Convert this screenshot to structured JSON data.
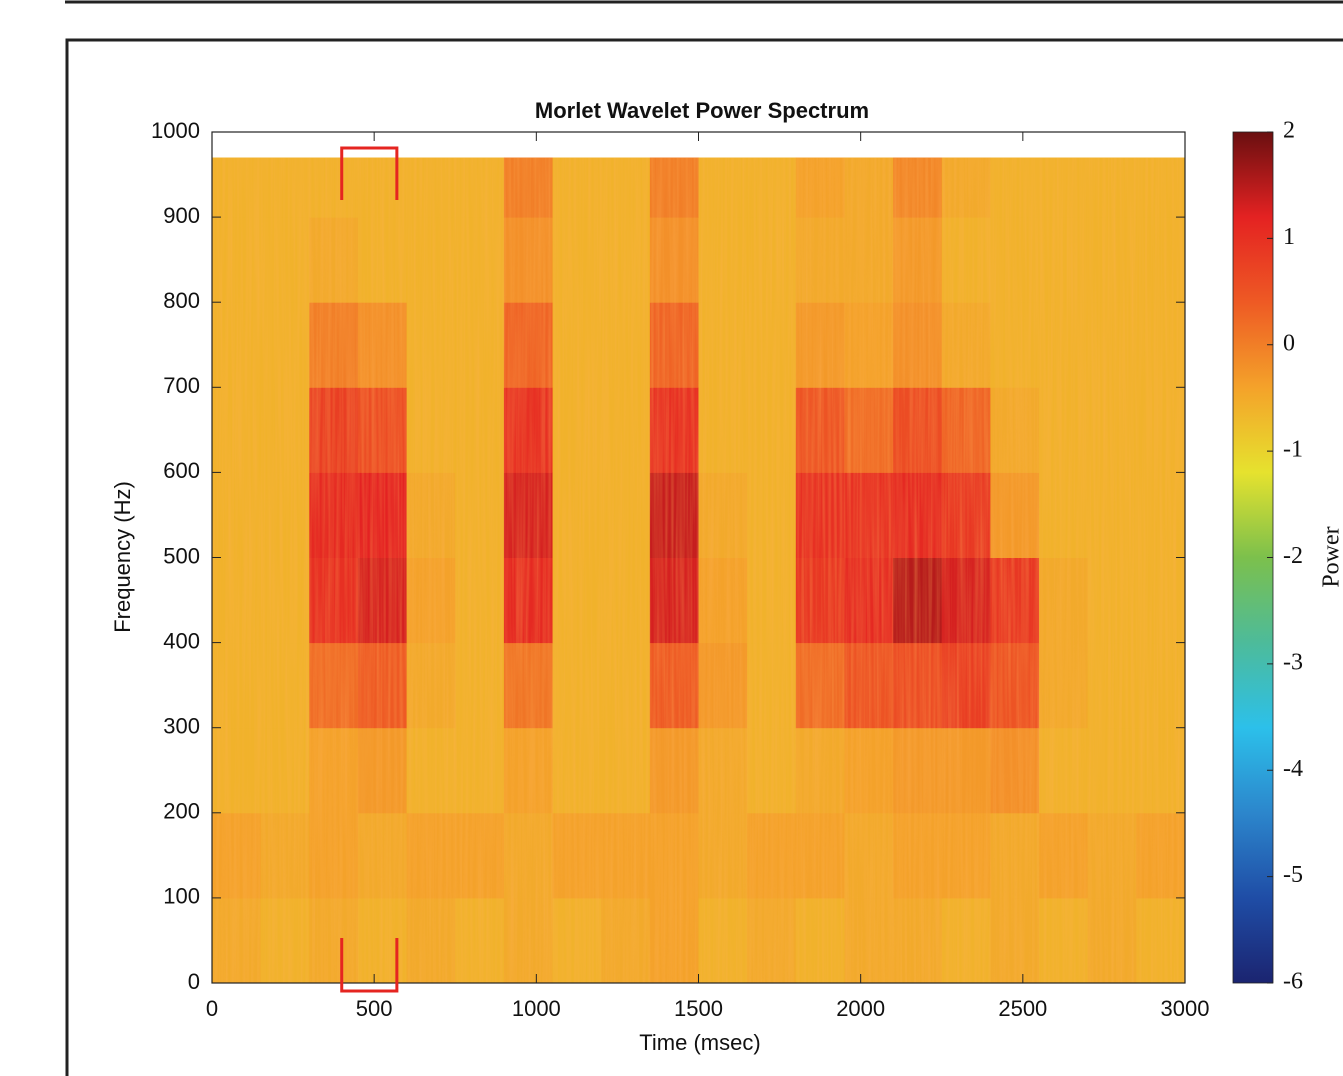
{
  "chart_data": {
    "type": "heatmap",
    "title": "Morlet Wavelet Power Spectrum",
    "x_label": "Time (msec)",
    "y_label": "Frequency (Hz)",
    "colorbar_label": "Power",
    "xlim": [
      0,
      3000
    ],
    "ylim": [
      0,
      1000
    ],
    "xticks": [
      0,
      500,
      1000,
      1500,
      2000,
      2500,
      3000
    ],
    "yticks": [
      0,
      100,
      200,
      300,
      400,
      500,
      600,
      700,
      800,
      900,
      1000
    ],
    "clim": [
      -6,
      2
    ],
    "cticks": [
      -6,
      -5,
      -4,
      -3,
      -2,
      -1,
      0,
      1,
      2
    ],
    "colormap": [
      "#1b2470",
      "#1f4da6",
      "#2c86cc",
      "#2cc0ea",
      "#4dbb9a",
      "#7cc04c",
      "#e6e22e",
      "#f4a22a",
      "#ee5a24",
      "#e42222",
      "#6a0f10"
    ],
    "xbins": [
      0,
      150,
      300,
      450,
      600,
      750,
      900,
      1050,
      1200,
      1350,
      1500,
      1650,
      1800,
      1950,
      2100,
      2250,
      2400,
      2550,
      2700,
      2850,
      3000
    ],
    "ybins": [
      0,
      100,
      200,
      300,
      400,
      500,
      600,
      700,
      800,
      900,
      970
    ],
    "values": [
      [
        -0.5,
        -0.6,
        -0.5,
        -0.6,
        -0.5,
        -0.6,
        -0.5,
        -0.6,
        -0.5,
        -0.4,
        -0.6,
        -0.5,
        -0.6,
        -0.5,
        -0.5,
        -0.6,
        -0.5,
        -0.6,
        -0.5,
        -0.6
      ],
      [
        -0.4,
        -0.5,
        -0.4,
        -0.5,
        -0.4,
        -0.4,
        -0.5,
        -0.4,
        -0.4,
        -0.4,
        -0.5,
        -0.4,
        -0.4,
        -0.5,
        -0.4,
        -0.4,
        -0.5,
        -0.4,
        -0.5,
        -0.4
      ],
      [
        -0.6,
        -0.6,
        -0.4,
        -0.3,
        -0.6,
        -0.6,
        -0.4,
        -0.6,
        -0.6,
        -0.3,
        -0.5,
        -0.6,
        -0.5,
        -0.4,
        -0.3,
        -0.3,
        -0.2,
        -0.6,
        -0.6,
        -0.6
      ],
      [
        -0.6,
        -0.6,
        0.2,
        0.4,
        -0.5,
        -0.6,
        0.1,
        -0.6,
        -0.6,
        0.4,
        -0.3,
        -0.6,
        0.2,
        0.5,
        0.6,
        0.8,
        0.5,
        -0.5,
        -0.6,
        -0.6
      ],
      [
        -0.6,
        -0.6,
        1.0,
        1.3,
        -0.4,
        -0.6,
        1.1,
        -0.6,
        -0.6,
        1.3,
        -0.4,
        -0.6,
        0.9,
        1.1,
        1.5,
        1.3,
        0.9,
        -0.5,
        -0.6,
        -0.6
      ],
      [
        -0.6,
        -0.6,
        1.1,
        1.2,
        -0.5,
        -0.6,
        1.3,
        -0.6,
        -0.6,
        1.4,
        -0.5,
        -0.6,
        1.0,
        1.0,
        1.1,
        0.9,
        -0.3,
        -0.6,
        -0.6,
        -0.6
      ],
      [
        -0.6,
        -0.6,
        0.8,
        0.6,
        -0.6,
        -0.6,
        1.0,
        -0.6,
        -0.6,
        1.0,
        -0.6,
        -0.6,
        0.5,
        0.2,
        0.6,
        0.3,
        -0.5,
        -0.6,
        -0.6,
        -0.6
      ],
      [
        -0.6,
        -0.6,
        0.0,
        -0.2,
        -0.6,
        -0.6,
        0.3,
        -0.6,
        -0.6,
        0.3,
        -0.6,
        -0.6,
        -0.3,
        -0.4,
        -0.2,
        -0.5,
        -0.6,
        -0.6,
        -0.6,
        -0.6
      ],
      [
        -0.6,
        -0.6,
        -0.5,
        -0.6,
        -0.6,
        -0.6,
        -0.2,
        -0.6,
        -0.6,
        -0.2,
        -0.6,
        -0.6,
        -0.5,
        -0.5,
        -0.3,
        -0.6,
        -0.6,
        -0.6,
        -0.6,
        -0.6
      ],
      [
        -0.6,
        -0.6,
        -0.6,
        -0.6,
        -0.6,
        -0.6,
        0.0,
        -0.6,
        -0.6,
        0.0,
        -0.6,
        -0.6,
        -0.4,
        -0.5,
        -0.1,
        -0.5,
        -0.6,
        -0.6,
        -0.6,
        -0.6
      ]
    ],
    "highlight_xlim": [
      400,
      570
    ],
    "highlight_color": "#e52520"
  }
}
